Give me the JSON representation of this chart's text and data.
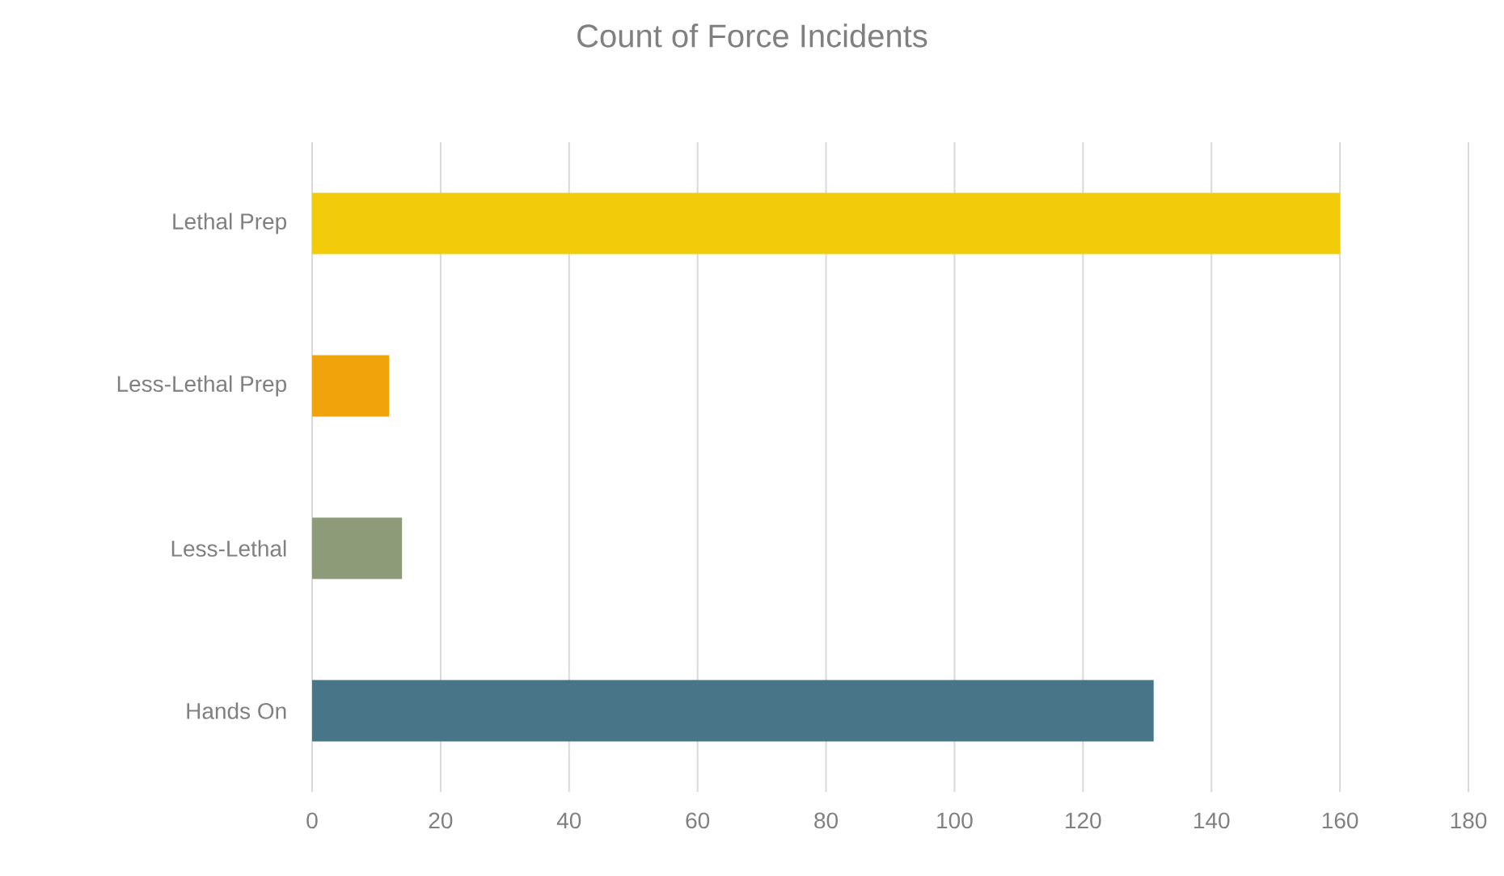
{
  "chart_data": {
    "type": "bar",
    "orientation": "horizontal",
    "title": "Count of Force Incidents",
    "categories": [
      "Lethal Prep",
      "Less-Lethal Prep",
      "Less-Lethal",
      "Hands On"
    ],
    "values": [
      160,
      12,
      14,
      131
    ],
    "colors": [
      "#f2cb0b",
      "#f0a30a",
      "#8e9b78",
      "#487587"
    ],
    "xlim": [
      0,
      180
    ],
    "xticks": [
      0,
      20,
      40,
      60,
      80,
      100,
      120,
      140,
      160,
      180
    ],
    "grid": "x"
  }
}
